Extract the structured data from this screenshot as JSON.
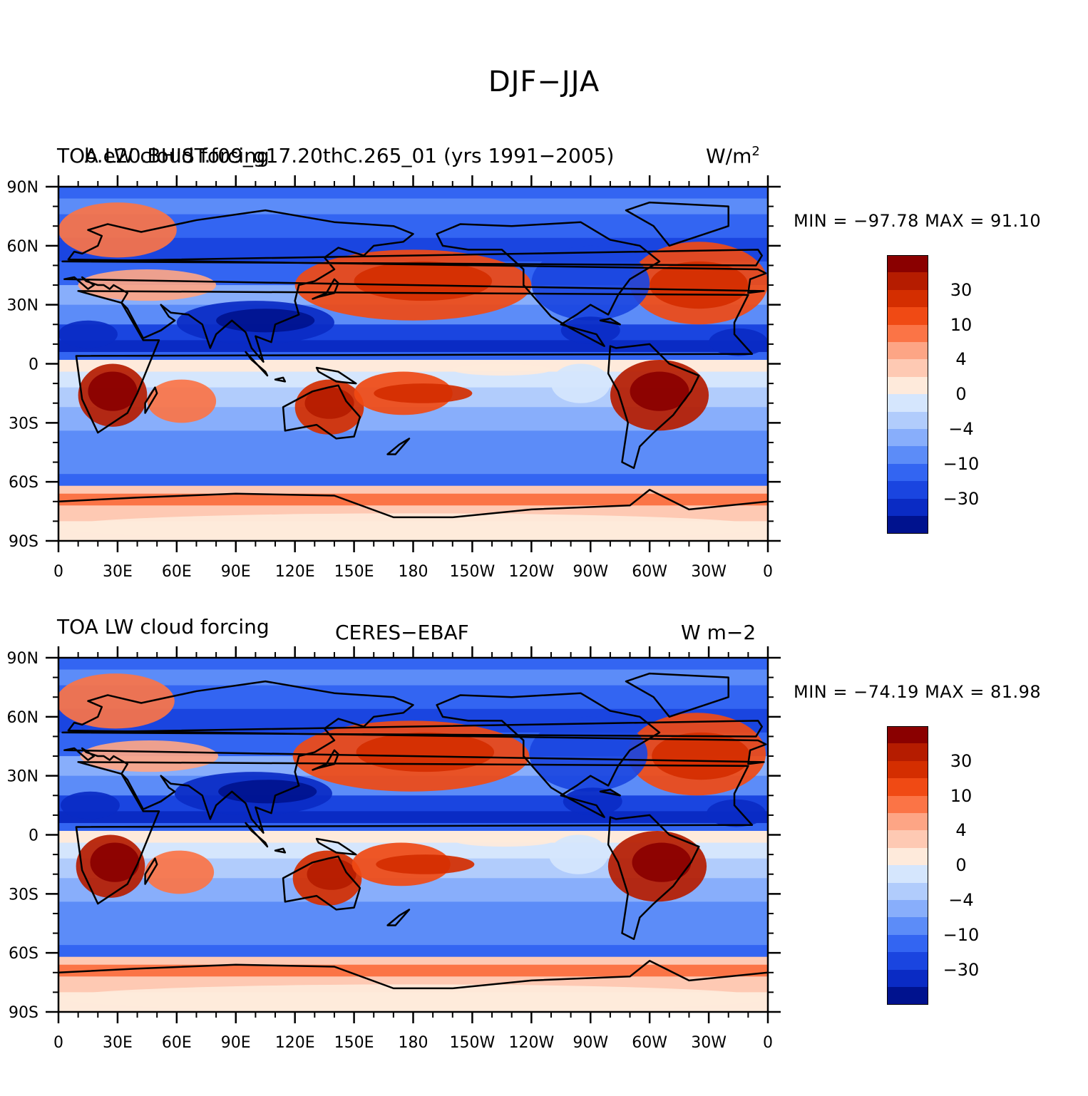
{
  "title": "DJF−JJA",
  "panels": [
    {
      "left_title": "TOA LW cloud forcing",
      "center_title": "b.e20.BHIST.f09_g17.20thC.265_01 (yrs 1991−2005)",
      "right_title": "W/m",
      "right_sup": "2",
      "min_label": "MIN = −97.78",
      "max_label": "MAX =   91.10",
      "min": -97.78,
      "max": 91.1
    },
    {
      "left_title": "TOA LW cloud forcing",
      "center_title": "CERES−EBAF",
      "right_title": "W m−2",
      "right_sup": "",
      "min_label": "MIN = −74.19",
      "max_label": "MAX =   81.98",
      "min": -74.19,
      "max": 81.98
    }
  ],
  "lat_labels": [
    "90N",
    "60N",
    "30N",
    "0",
    "30S",
    "60S",
    "90S"
  ],
  "lon_labels": [
    "0",
    "30E",
    "60E",
    "90E",
    "120E",
    "150E",
    "180",
    "150W",
    "120W",
    "90W",
    "60W",
    "30W",
    "0"
  ],
  "colorbar": {
    "colors": [
      "#8a0000",
      "#b51c00",
      "#d42e00",
      "#f04a14",
      "#fb7446",
      "#fda585",
      "#fec9b3",
      "#feeadb",
      "#d5e6fd",
      "#b1ccfc",
      "#88aefb",
      "#5c8cf8",
      "#3365f2",
      "#1a45e0",
      "#0a2bc4",
      "#00128e"
    ],
    "labels": [
      "30",
      "10",
      "4",
      "0",
      "−4",
      "−10",
      "−30"
    ]
  }
}
